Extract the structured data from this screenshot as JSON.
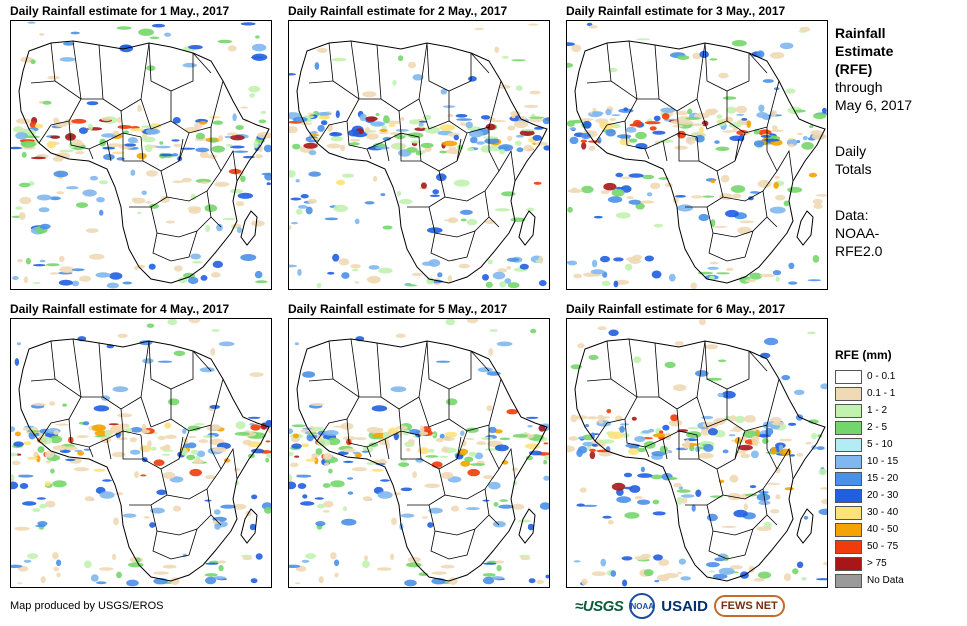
{
  "panels": [
    {
      "title": "Daily Rainfall estimate for 1 May., 2017",
      "day": 1
    },
    {
      "title": "Daily Rainfall estimate for 2 May., 2017",
      "day": 2
    },
    {
      "title": "Daily Rainfall estimate for 3 May., 2017",
      "day": 3
    },
    {
      "title": "Daily Rainfall estimate for 4 May., 2017",
      "day": 4
    },
    {
      "title": "Daily Rainfall estimate for 5 May., 2017",
      "day": 5
    },
    {
      "title": "Daily Rainfall estimate for 6 May., 2017",
      "day": 6
    }
  ],
  "sidebar": {
    "title_line1": "Rainfall",
    "title_line2": "Estimate",
    "title_line3": "(RFE)",
    "through_line1": "through",
    "through_line2": "May 6, 2017",
    "totals_line1": "Daily",
    "totals_line2": "Totals",
    "data_line1": "Data:",
    "data_line2": "NOAA-",
    "data_line3": "RFE2.0"
  },
  "legend": {
    "title": "RFE (mm)",
    "items": [
      {
        "label": "0 - 0.1",
        "color": "#ffffff"
      },
      {
        "label": "0.1 - 1",
        "color": "#f0d9b5"
      },
      {
        "label": "1 - 2",
        "color": "#c2f2b0"
      },
      {
        "label": "2 - 5",
        "color": "#74d66a"
      },
      {
        "label": "5 - 10",
        "color": "#b3ecf5"
      },
      {
        "label": "10 - 15",
        "color": "#7fb7ee"
      },
      {
        "label": "15 - 20",
        "color": "#4a8fe8"
      },
      {
        "label": "20 - 30",
        "color": "#1f5fe0"
      },
      {
        "label": "30 - 40",
        "color": "#ffe27a"
      },
      {
        "label": "40 - 50",
        "color": "#f5a300"
      },
      {
        "label": "50 - 75",
        "color": "#f03c0a"
      },
      {
        "label": "> 75",
        "color": "#a8161a"
      },
      {
        "label": "No Data",
        "color": "#9a9a9a"
      }
    ]
  },
  "credit": "Map produced by USGS/EROS",
  "logos": {
    "usgs": "USGS",
    "noaa": "NOAA",
    "usaid": "USAID",
    "fews": "FEWS NET"
  }
}
